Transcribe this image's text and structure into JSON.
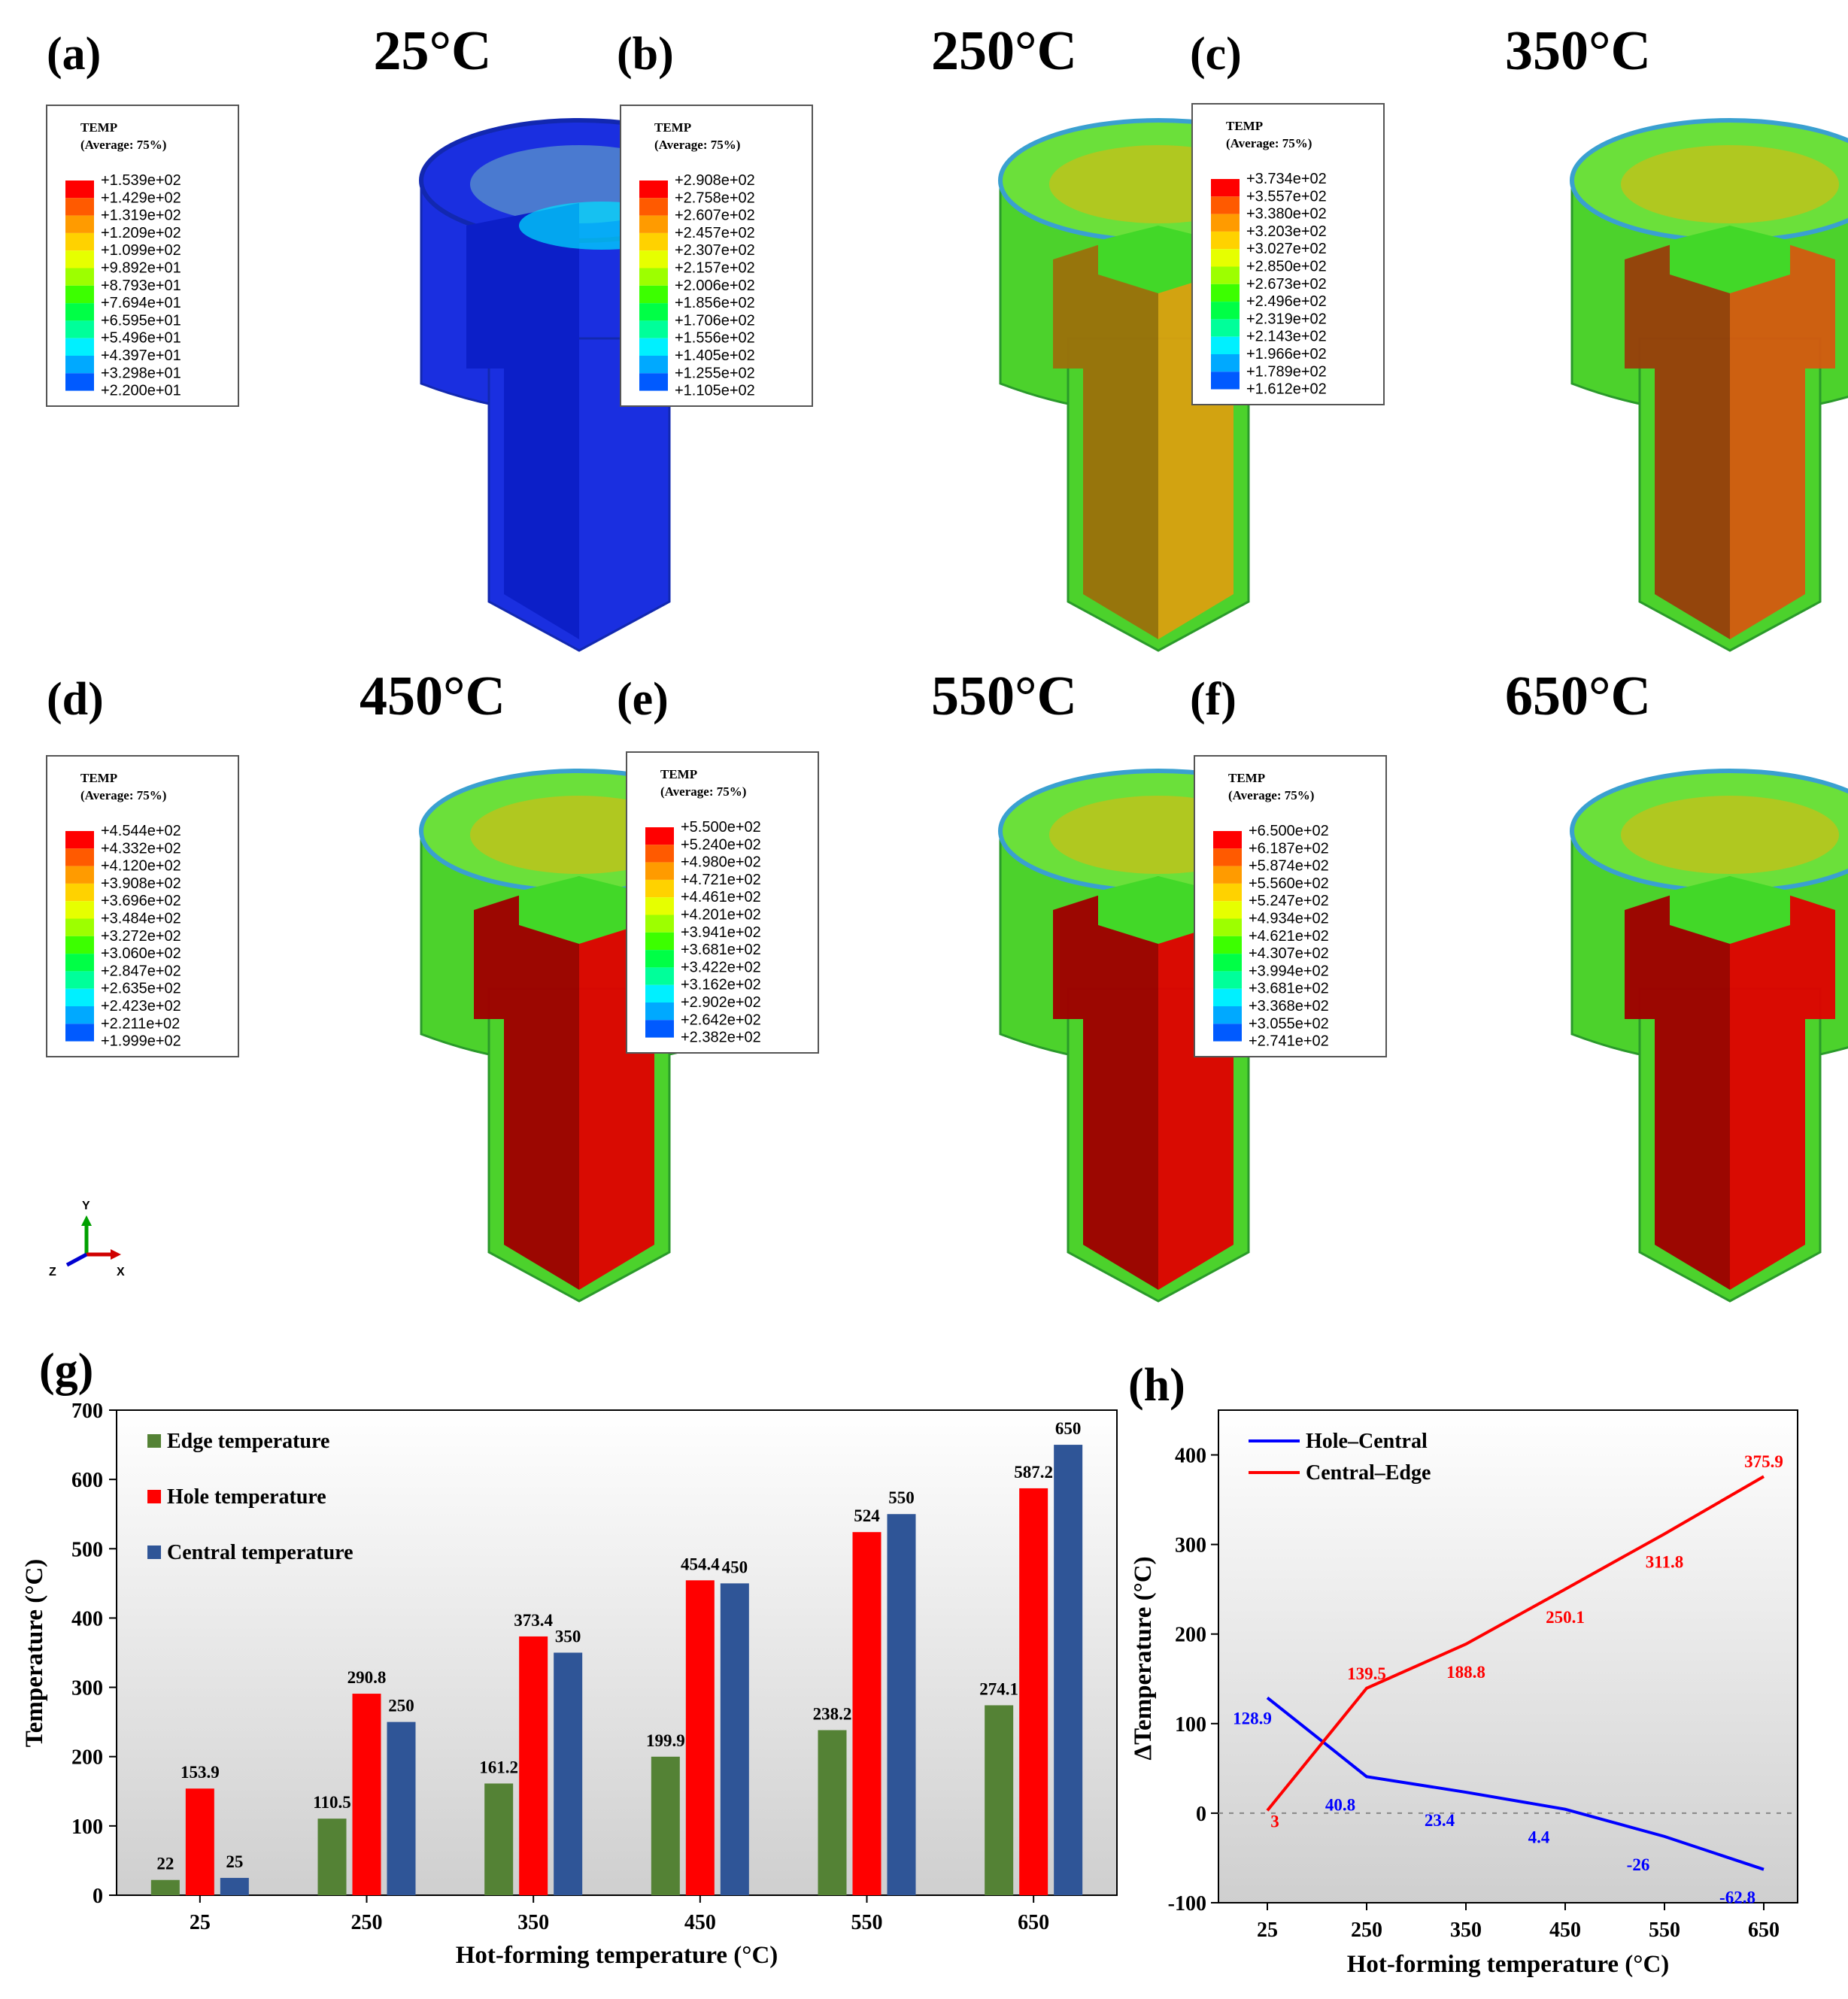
{
  "panels": [
    {
      "label": "(a)",
      "title": "25°C",
      "legend_title": "TEMP",
      "legend_subtitle": "(Average: 75%)",
      "legend_values": [
        "+1.539e+02",
        "+1.429e+02",
        "+1.319e+02",
        "+1.209e+02",
        "+1.099e+02",
        "+9.892e+01",
        "+8.793e+01",
        "+7.694e+01",
        "+6.595e+01",
        "+5.496e+01",
        "+4.397e+01",
        "+3.298e+01",
        "+2.200e+01"
      ],
      "scheme": "cold"
    },
    {
      "label": "(b)",
      "title": "250°C",
      "legend_title": "TEMP",
      "legend_subtitle": "(Average: 75%)",
      "legend_values": [
        "+2.908e+02",
        "+2.758e+02",
        "+2.607e+02",
        "+2.457e+02",
        "+2.307e+02",
        "+2.157e+02",
        "+2.006e+02",
        "+1.856e+02",
        "+1.706e+02",
        "+1.556e+02",
        "+1.405e+02",
        "+1.255e+02",
        "+1.105e+02"
      ],
      "scheme": "amber"
    },
    {
      "label": "(c)",
      "title": "350°C",
      "legend_title": "TEMP",
      "legend_subtitle": "(Average: 75%)",
      "legend_values": [
        "+3.734e+02",
        "+3.557e+02",
        "+3.380e+02",
        "+3.203e+02",
        "+3.027e+02",
        "+2.850e+02",
        "+2.673e+02",
        "+2.496e+02",
        "+2.319e+02",
        "+2.143e+02",
        "+1.966e+02",
        "+1.789e+02",
        "+1.612e+02"
      ],
      "scheme": "orange"
    },
    {
      "label": "(d)",
      "title": "450°C",
      "legend_title": "TEMP",
      "legend_subtitle": "(Average: 75%)",
      "legend_values": [
        "+4.544e+02",
        "+4.332e+02",
        "+4.120e+02",
        "+3.908e+02",
        "+3.696e+02",
        "+3.484e+02",
        "+3.272e+02",
        "+3.060e+02",
        "+2.847e+02",
        "+2.635e+02",
        "+2.423e+02",
        "+2.211e+02",
        "+1.999e+02"
      ],
      "scheme": "red"
    },
    {
      "label": "(e)",
      "title": "550°C",
      "legend_title": "TEMP",
      "legend_subtitle": "(Average: 75%)",
      "legend_values": [
        "+5.500e+02",
        "+5.240e+02",
        "+4.980e+02",
        "+4.721e+02",
        "+4.461e+02",
        "+4.201e+02",
        "+3.941e+02",
        "+3.681e+02",
        "+3.422e+02",
        "+3.162e+02",
        "+2.902e+02",
        "+2.642e+02",
        "+2.382e+02"
      ],
      "scheme": "red"
    },
    {
      "label": "(f)",
      "title": "650°C",
      "legend_title": "TEMP",
      "legend_subtitle": "(Average: 75%)",
      "legend_values": [
        "+6.500e+02",
        "+6.187e+02",
        "+5.874e+02",
        "+5.560e+02",
        "+5.247e+02",
        "+4.934e+02",
        "+4.621e+02",
        "+4.307e+02",
        "+3.994e+02",
        "+3.681e+02",
        "+3.368e+02",
        "+3.055e+02",
        "+2.741e+02"
      ],
      "scheme": "red"
    }
  ],
  "contour_colors": [
    "#ff0000",
    "#ff5a00",
    "#ff9b00",
    "#ffd200",
    "#e6ff00",
    "#9dff00",
    "#3cff00",
    "#00ff46",
    "#00ff9a",
    "#00f0ff",
    "#00a9ff",
    "#005aff",
    "#0000ff"
  ],
  "scheme_colors": {
    "cold": "#1a2fe0",
    "amber": "#d9a010",
    "orange": "#d45a10",
    "red": "#e00000"
  },
  "triad": {
    "y": "Y",
    "z": "Z",
    "x": "X"
  },
  "chart_data": [
    {
      "type": "bar",
      "panel_label": "(g)",
      "categories": [
        "25",
        "250",
        "350",
        "450",
        "550",
        "650"
      ],
      "series": [
        {
          "name": "Edge temperature",
          "color": "#548235",
          "values": [
            22,
            110.5,
            161.2,
            199.9,
            238.2,
            274.1
          ],
          "labels": [
            "22",
            "110.5",
            "161.2",
            "199.9",
            "238.2",
            "274.1"
          ]
        },
        {
          "name": "Hole temperature",
          "color": "#ff0000",
          "values": [
            153.9,
            290.8,
            373.4,
            454.4,
            524,
            587.2
          ],
          "labels": [
            "153.9",
            "290.8",
            "373.4",
            "454.4",
            "524",
            "587.2"
          ]
        },
        {
          "name": "Central temperature",
          "color": "#2f5597",
          "values": [
            25,
            250,
            350,
            450,
            550,
            650
          ],
          "labels": [
            "25",
            "250",
            "350",
            "450",
            "550",
            "650"
          ]
        }
      ],
      "xlabel": "Hot-forming temperature (°C)",
      "ylabel": "Temperature (°C)",
      "ylim": [
        0,
        700
      ],
      "yticks": [
        "0",
        "100",
        "200",
        "300",
        "400",
        "500",
        "600",
        "700"
      ]
    },
    {
      "type": "line",
      "panel_label": "(h)",
      "x": [
        25,
        250,
        350,
        450,
        550,
        650
      ],
      "xticks": [
        "25",
        "250",
        "350",
        "450",
        "550",
        "650"
      ],
      "series": [
        {
          "name": "Hole–Central",
          "color": "#0000ff",
          "values": [
            128.9,
            40.8,
            23.4,
            4.4,
            -26,
            -62.8
          ],
          "labels": [
            "128.9",
            "40.8",
            "23.4",
            "4.4",
            "-26",
            "-62.8"
          ]
        },
        {
          "name": "Central–Edge",
          "color": "#ff0000",
          "values": [
            3,
            139.5,
            188.8,
            250.1,
            311.8,
            375.9
          ],
          "labels": [
            "3",
            "139.5",
            "188.8",
            "250.1",
            "311.8",
            "375.9"
          ]
        }
      ],
      "xlabel": "Hot-forming temperature (°C)",
      "ylabel": "ΔTemperature (°C)",
      "ylim": [
        -100,
        450
      ],
      "yticks": [
        "-100",
        "0",
        "100",
        "200",
        "300",
        "400"
      ]
    }
  ]
}
